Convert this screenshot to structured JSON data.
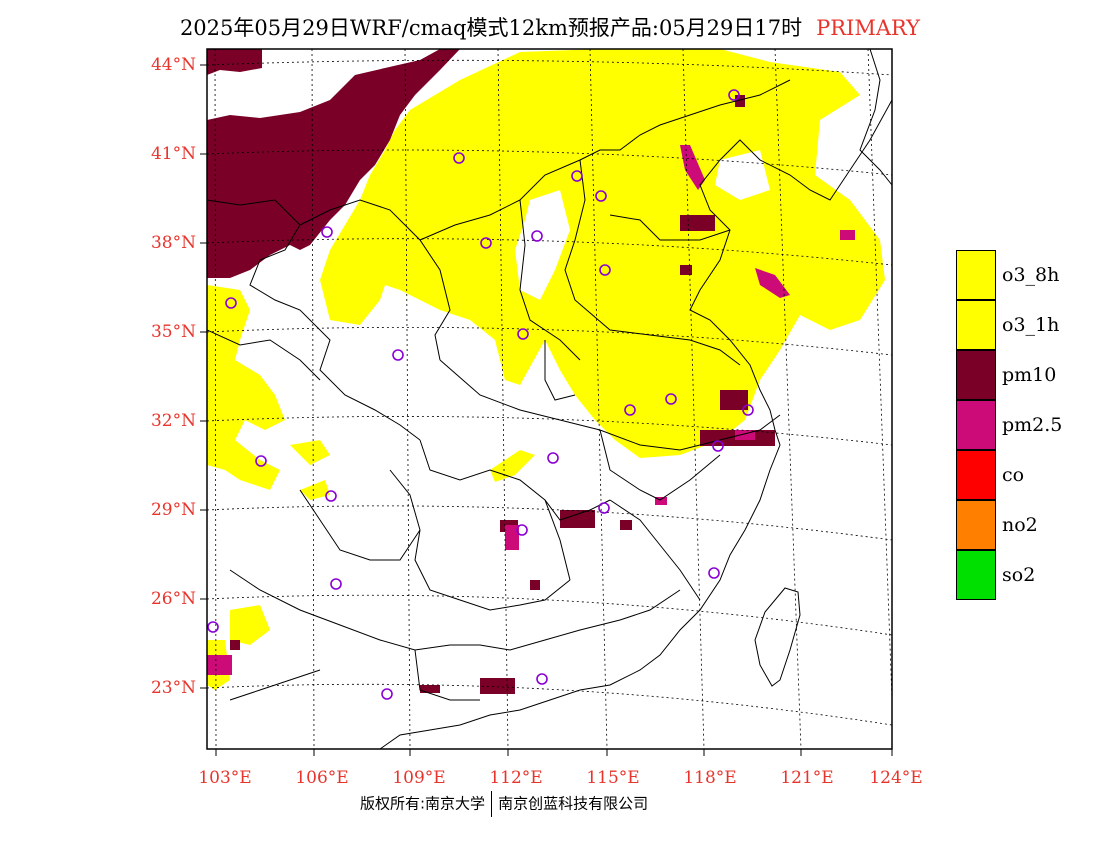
{
  "title": {
    "main": "2025年05月29日WRF/cmaq模式12km预报产品:05月29日17时",
    "tag": "PRIMARY"
  },
  "lat_labels": [
    "44°N",
    "41°N",
    "38°N",
    "35°N",
    "32°N",
    "29°N",
    "26°N",
    "23°N"
  ],
  "lon_labels": [
    "103°E",
    "106°E",
    "109°E",
    "112°E",
    "115°E",
    "118°E",
    "121°E",
    "124°E"
  ],
  "legend": [
    {
      "label": "o3_8h",
      "color": "#ffff00"
    },
    {
      "label": "o3_1h",
      "color": "#ffff00"
    },
    {
      "label": "pm10",
      "color": "#7a0028"
    },
    {
      "label": "pm2.5",
      "color": "#cc0a78"
    },
    {
      "label": "co",
      "color": "#ff0000"
    },
    {
      "label": "no2",
      "color": "#ff7f00"
    },
    {
      "label": "so2",
      "color": "#00e000"
    }
  ],
  "footer": {
    "left": "版权所有:南京大学",
    "right": "南京创蓝科技有限公司"
  },
  "colors": {
    "accent": "#e8342c",
    "o3": "#ffff00",
    "pm10": "#7a0028",
    "pm25": "#cc0a78",
    "site_marker": "#8a00d4"
  }
}
